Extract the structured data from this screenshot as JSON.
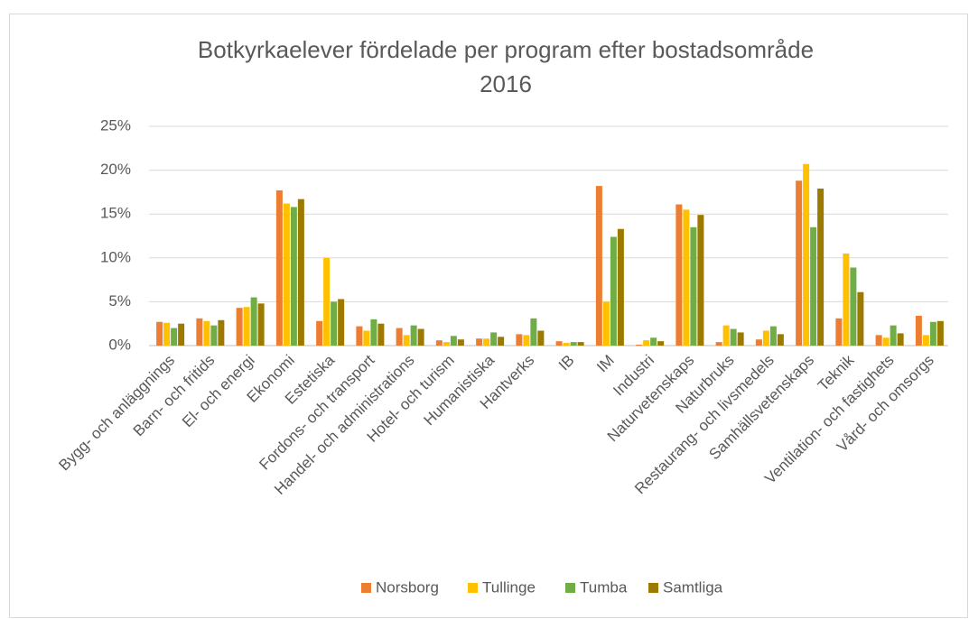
{
  "chart_data": {
    "type": "bar",
    "title": [
      "Botkyrkaelever fördelade per program efter bostadsområde",
      "2016"
    ],
    "categories": [
      "Bygg- och anläggnings",
      "Barn- och fritids",
      "El- och energi",
      "Ekonomi",
      "Estetiska",
      "Fordons- och transport",
      "Handel- och administrations",
      "Hotel- och turism",
      "Humanistiska",
      "Hantverks",
      "IB",
      "IM",
      "Industri",
      "Naturvetenskaps",
      "Naturbruks",
      "Restaurang- och livsmedels",
      "Samhällsvetenskaps",
      "Teknik",
      "Ventilation- och fastighets",
      "Vård- och omsorgs"
    ],
    "series": [
      {
        "name": "Norsborg",
        "color": "#ED7D31",
        "values": [
          2.7,
          3.1,
          4.3,
          17.7,
          2.8,
          2.2,
          2.0,
          0.6,
          0.8,
          1.3,
          0.5,
          18.2,
          0.1,
          16.1,
          0.4,
          0.7,
          18.8,
          3.1,
          1.2,
          3.4
        ]
      },
      {
        "name": "Tullinge",
        "color": "#FFC000",
        "values": [
          2.6,
          2.8,
          4.4,
          16.2,
          10.0,
          1.7,
          1.2,
          0.4,
          0.8,
          1.2,
          0.3,
          5.0,
          0.6,
          15.5,
          2.3,
          1.7,
          20.7,
          10.5,
          0.9,
          1.2
        ]
      },
      {
        "name": "Tumba",
        "color": "#70AD47",
        "values": [
          2.0,
          2.3,
          5.5,
          15.8,
          5.0,
          3.0,
          2.3,
          1.1,
          1.5,
          3.1,
          0.4,
          12.4,
          0.9,
          13.5,
          1.9,
          2.2,
          13.5,
          8.9,
          2.3,
          2.7
        ]
      },
      {
        "name": "Samtliga",
        "color": "#9C7A00",
        "values": [
          2.5,
          2.9,
          4.8,
          16.7,
          5.3,
          2.5,
          1.9,
          0.7,
          1.0,
          1.7,
          0.4,
          13.3,
          0.5,
          14.9,
          1.5,
          1.3,
          17.9,
          6.1,
          1.4,
          2.8
        ]
      }
    ],
    "ylim": [
      0,
      25
    ],
    "yticks": [
      {
        "value": 0,
        "label": "0%"
      },
      {
        "value": 5,
        "label": "5%"
      },
      {
        "value": 10,
        "label": "10%"
      },
      {
        "value": 15,
        "label": "15%"
      },
      {
        "value": 20,
        "label": "20%"
      },
      {
        "value": 25,
        "label": "25%"
      }
    ],
    "grid": true,
    "legend": "bottom"
  }
}
